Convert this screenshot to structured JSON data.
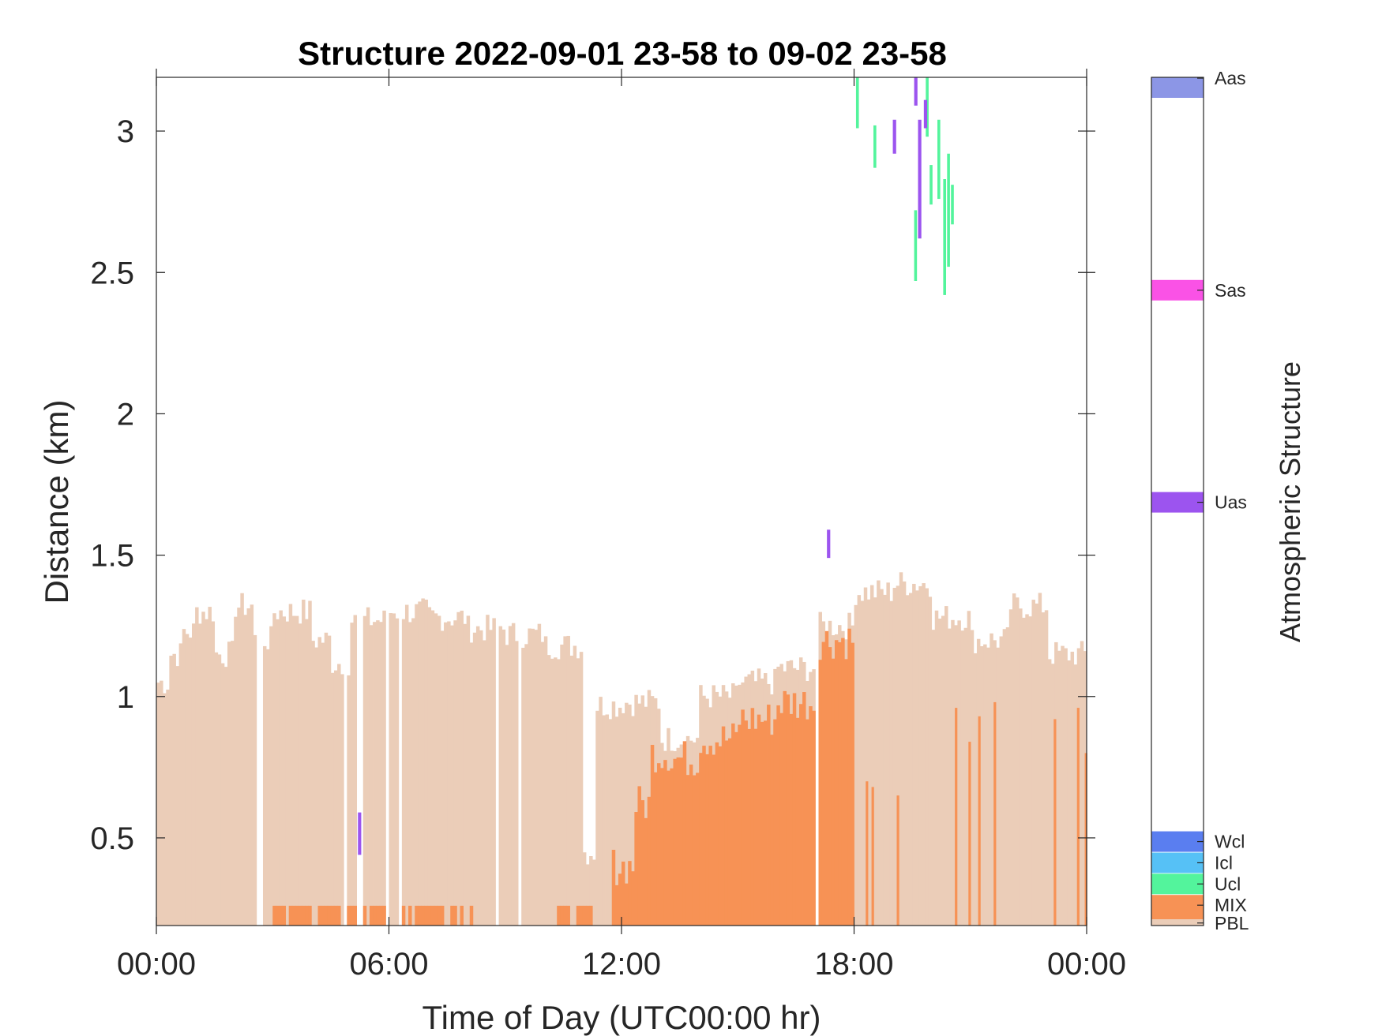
{
  "chart_data": {
    "type": "bar",
    "title": "Structure 2022-09-01 23-58 to 09-02 23-58",
    "xlabel": "Time of Day (UTC00:00 hr)",
    "ylabel": "Distance (km)",
    "x_ticks": [
      "00:00",
      "06:00",
      "12:00",
      "18:00",
      "00:00"
    ],
    "x_tick_hours": [
      0,
      6,
      12,
      18,
      24
    ],
    "xlim_hours": [
      0,
      24
    ],
    "y_ticks": [
      "0.5",
      "1",
      "1.5",
      "2",
      "2.5",
      "3"
    ],
    "y_tick_values": [
      0.5,
      1,
      1.5,
      2,
      2.5,
      3
    ],
    "ylim": [
      0.19,
      3.19
    ],
    "bin_minutes": 5,
    "pbl_bottom": 0.19,
    "colorbar": {
      "label": "Atmospheric Structure",
      "classes": [
        {
          "label": "PBL",
          "color": "#ebcdb8"
        },
        {
          "label": "MIX",
          "color": "#f79255"
        },
        {
          "label": "Ucl",
          "color": "#53f49c"
        },
        {
          "label": "Icl",
          "color": "#56c1f6"
        },
        {
          "label": "Wcl",
          "color": "#5a7ef0"
        },
        {
          "label": "Uas",
          "color": "#9c54ef"
        },
        {
          "label": "Sas",
          "color": "#fa52e6"
        },
        {
          "label": "Aas",
          "color": "#8c96e6"
        }
      ]
    },
    "pbl_segments": [
      {
        "start_hour": 0.0,
        "end_hour": 0.33,
        "top_km": 1.05
      },
      {
        "start_hour": 0.33,
        "end_hour": 0.67,
        "top_km": 1.15
      },
      {
        "start_hour": 0.67,
        "end_hour": 1.0,
        "top_km": 1.23
      },
      {
        "start_hour": 1.0,
        "end_hour": 1.5,
        "top_km": 1.3
      },
      {
        "start_hour": 1.5,
        "end_hour": 2.0,
        "top_km": 1.15
      },
      {
        "start_hour": 2.0,
        "end_hour": 2.5,
        "top_km": 1.32
      },
      {
        "start_hour": 2.5,
        "end_hour": 3.0,
        "top_km": 1.2
      },
      {
        "start_hour": 3.0,
        "end_hour": 4.0,
        "top_km": 1.3
      },
      {
        "start_hour": 4.0,
        "end_hour": 4.5,
        "top_km": 1.2
      },
      {
        "start_hour": 4.5,
        "end_hour": 5.0,
        "top_km": 1.12
      },
      {
        "start_hour": 5.0,
        "end_hour": 6.0,
        "top_km": 1.27
      },
      {
        "start_hour": 6.0,
        "end_hour": 7.0,
        "top_km": 1.3
      },
      {
        "start_hour": 7.0,
        "end_hour": 8.0,
        "top_km": 1.28
      },
      {
        "start_hour": 8.0,
        "end_hour": 9.0,
        "top_km": 1.24
      },
      {
        "start_hour": 9.0,
        "end_hour": 10.0,
        "top_km": 1.22
      },
      {
        "start_hour": 10.0,
        "end_hour": 11.0,
        "top_km": 1.18
      },
      {
        "start_hour": 11.0,
        "end_hour": 11.33,
        "top_km": 0.45
      },
      {
        "start_hour": 11.33,
        "end_hour": 12.0,
        "top_km": 0.97
      },
      {
        "start_hour": 12.0,
        "end_hour": 13.0,
        "top_km": 0.98
      },
      {
        "start_hour": 13.0,
        "end_hour": 14.0,
        "top_km": 0.85
      },
      {
        "start_hour": 14.0,
        "end_hour": 15.0,
        "top_km": 1.0
      },
      {
        "start_hour": 15.0,
        "end_hour": 16.0,
        "top_km": 1.05
      },
      {
        "start_hour": 16.0,
        "end_hour": 17.0,
        "top_km": 1.1
      },
      {
        "start_hour": 17.0,
        "end_hour": 18.0,
        "top_km": 1.25
      },
      {
        "start_hour": 18.0,
        "end_hour": 19.0,
        "top_km": 1.37
      },
      {
        "start_hour": 19.0,
        "end_hour": 20.0,
        "top_km": 1.4
      },
      {
        "start_hour": 20.0,
        "end_hour": 21.0,
        "top_km": 1.28
      },
      {
        "start_hour": 21.0,
        "end_hour": 22.0,
        "top_km": 1.2
      },
      {
        "start_hour": 22.0,
        "end_hour": 23.0,
        "top_km": 1.32
      },
      {
        "start_hour": 23.0,
        "end_hour": 24.0,
        "top_km": 1.15
      }
    ],
    "pbl_gaps_hours": [
      2.63,
      4.83,
      5.2,
      5.92,
      6.25,
      8.75,
      9.3,
      17.0
    ],
    "mix_segments": [
      {
        "start_hour": 3.0,
        "end_hour": 6.0,
        "top_km": 0.26
      },
      {
        "start_hour": 6.25,
        "end_hour": 8.2,
        "top_km": 0.26
      },
      {
        "start_hour": 10.33,
        "end_hour": 11.25,
        "top_km": 0.26
      },
      {
        "start_hour": 11.75,
        "end_hour": 12.33,
        "top_km": 0.4
      },
      {
        "start_hour": 12.33,
        "end_hour": 12.75,
        "top_km": 0.62
      },
      {
        "start_hour": 12.75,
        "end_hour": 13.25,
        "top_km": 0.8
      },
      {
        "start_hour": 13.25,
        "end_hour": 14.0,
        "top_km": 0.78
      },
      {
        "start_hour": 14.0,
        "end_hour": 15.0,
        "top_km": 0.85
      },
      {
        "start_hour": 15.0,
        "end_hour": 16.0,
        "top_km": 0.92
      },
      {
        "start_hour": 16.0,
        "end_hour": 17.0,
        "top_km": 0.98
      },
      {
        "start_hour": 17.0,
        "end_hour": 18.0,
        "top_km": 1.2
      }
    ],
    "mix_spikes": [
      {
        "hour": 18.3,
        "top_km": 0.7
      },
      {
        "hour": 18.45,
        "top_km": 0.68
      },
      {
        "hour": 19.1,
        "top_km": 0.65
      },
      {
        "hour": 20.6,
        "top_km": 0.96
      },
      {
        "hour": 20.95,
        "top_km": 0.84
      },
      {
        "hour": 21.2,
        "top_km": 0.93
      },
      {
        "hour": 21.6,
        "top_km": 0.98
      },
      {
        "hour": 23.15,
        "top_km": 0.92
      },
      {
        "hour": 23.75,
        "top_km": 0.96
      },
      {
        "hour": 23.95,
        "top_km": 0.8
      }
    ],
    "ucl_segments": [
      {
        "hour": 18.05,
        "bottom_km": 3.01,
        "top_km": 3.19
      },
      {
        "hour": 18.5,
        "bottom_km": 2.87,
        "top_km": 3.02
      },
      {
        "hour": 19.55,
        "bottom_km": 2.47,
        "top_km": 2.72
      },
      {
        "hour": 19.85,
        "bottom_km": 2.98,
        "top_km": 3.19
      },
      {
        "hour": 19.95,
        "bottom_km": 2.74,
        "top_km": 2.88
      },
      {
        "hour": 20.15,
        "bottom_km": 2.76,
        "top_km": 3.04
      },
      {
        "hour": 20.3,
        "bottom_km": 2.42,
        "top_km": 2.83
      },
      {
        "hour": 20.4,
        "bottom_km": 2.52,
        "top_km": 2.92
      },
      {
        "hour": 20.5,
        "bottom_km": 2.67,
        "top_km": 2.81
      }
    ],
    "uas_segments": [
      {
        "hour": 5.2,
        "bottom_km": 0.44,
        "top_km": 0.59
      },
      {
        "hour": 17.3,
        "bottom_km": 1.49,
        "top_km": 1.59
      },
      {
        "hour": 19.0,
        "bottom_km": 2.92,
        "top_km": 3.04
      },
      {
        "hour": 19.55,
        "bottom_km": 3.09,
        "top_km": 3.19
      },
      {
        "hour": 19.65,
        "bottom_km": 2.62,
        "top_km": 3.04
      },
      {
        "hour": 19.8,
        "bottom_km": 3.01,
        "top_km": 3.11
      }
    ]
  }
}
